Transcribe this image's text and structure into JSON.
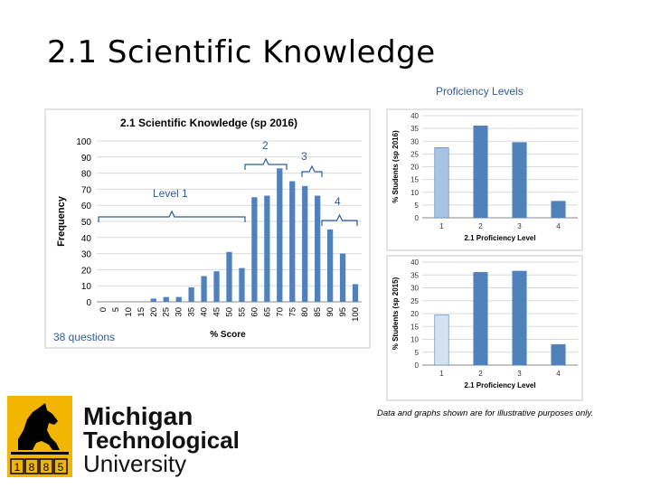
{
  "slide": {
    "title": "2.1 Scientific Knowledge",
    "proficiency_title": "Proficiency Levels",
    "disclaimer": "Data and graphs shown are for illustrative purposes only.",
    "questions_note": "38 questions",
    "annotations": {
      "level1": "Level 1",
      "level2": "2",
      "level3": "3",
      "level4": "4"
    },
    "accent_text_color": "#2e5c9a",
    "logo": {
      "line1": "Michigan",
      "line2": "Technological",
      "line3": "University",
      "year": "1885",
      "year_digits": [
        "1",
        "8",
        "8",
        "5"
      ],
      "gold": "#f2b600"
    }
  },
  "chart_data": [
    {
      "type": "bar",
      "title": "2.1 Scientific Knowledge (sp 2016)",
      "xlabel": "% Score",
      "ylabel": "Frequency",
      "ylim": [
        0,
        100
      ],
      "yticks": [
        0,
        10,
        20,
        30,
        40,
        50,
        60,
        70,
        80,
        90,
        100
      ],
      "categories": [
        "0",
        "5",
        "10",
        "15",
        "20",
        "25",
        "30",
        "35",
        "40",
        "45",
        "50",
        "55",
        "60",
        "65",
        "70",
        "75",
        "80",
        "85",
        "90",
        "95",
        "100"
      ],
      "values": [
        0,
        0,
        0,
        0,
        2,
        3,
        3,
        9,
        16,
        19,
        31,
        21,
        65,
        66,
        83,
        75,
        72,
        66,
        45,
        30,
        11
      ],
      "color": "#4f81bd",
      "grid": true
    },
    {
      "type": "bar",
      "title": "",
      "xlabel": "2.1 Proficiency Level",
      "ylabel": "% Students (sp 2016)",
      "ylim": [
        0,
        40
      ],
      "yticks": [
        0,
        5,
        10,
        15,
        20,
        25,
        30,
        35,
        40
      ],
      "categories": [
        "1",
        "2",
        "3",
        "4"
      ],
      "values": [
        27.5,
        36,
        29.5,
        6.5
      ],
      "colors": [
        "#a8c3e4",
        "#4f81bd",
        "#4f81bd",
        "#4f81bd"
      ],
      "grid": true
    },
    {
      "type": "bar",
      "title": "",
      "xlabel": "2.1 Proficiency Level",
      "ylabel": "% Students (sp 2015)",
      "ylim": [
        0,
        40
      ],
      "yticks": [
        0,
        5,
        10,
        15,
        20,
        25,
        30,
        35,
        40
      ],
      "categories": [
        "1",
        "2",
        "3",
        "4"
      ],
      "values": [
        19.5,
        36,
        36.5,
        8
      ],
      "colors": [
        "#d3e1f1",
        "#4f81bd",
        "#4f81bd",
        "#4f81bd"
      ],
      "grid": true
    }
  ]
}
